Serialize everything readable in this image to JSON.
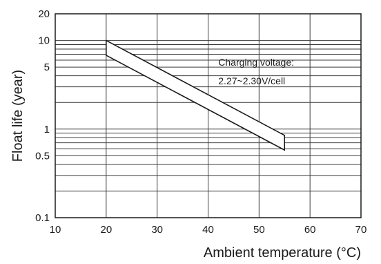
{
  "chart_data": {
    "type": "area",
    "xlabel": "Ambient temperature (°C)",
    "ylabel": "Float life (year)",
    "x_scale": "linear",
    "y_scale": "log",
    "xlim": [
      10,
      70
    ],
    "ylim": [
      0.1,
      20
    ],
    "x_ticks": [
      10,
      20,
      30,
      40,
      50,
      60,
      70
    ],
    "y_ticks": [
      0.1,
      0.5,
      1,
      5,
      10,
      20
    ],
    "y_tick_labels": [
      "0.1",
      "0.5",
      "1",
      "5",
      "10",
      "20"
    ],
    "x_gridlines": [
      10,
      20,
      30,
      40,
      50,
      60,
      70
    ],
    "y_gridlines": [
      0.1,
      0.2,
      0.3,
      0.4,
      0.5,
      0.6,
      0.7,
      0.8,
      0.9,
      1,
      2,
      3,
      4,
      5,
      6,
      7,
      8,
      9,
      10,
      20
    ],
    "grid": true,
    "band": {
      "x": [
        20,
        55
      ],
      "upper": [
        10,
        0.85
      ],
      "lower": [
        6.8,
        0.58
      ]
    },
    "annotations": [
      {
        "text": "Charging voltage:",
        "x": 42,
        "y": 5.2
      },
      {
        "text": "2.27~2.30V/cell",
        "x": 42,
        "y": 3.2
      }
    ]
  }
}
